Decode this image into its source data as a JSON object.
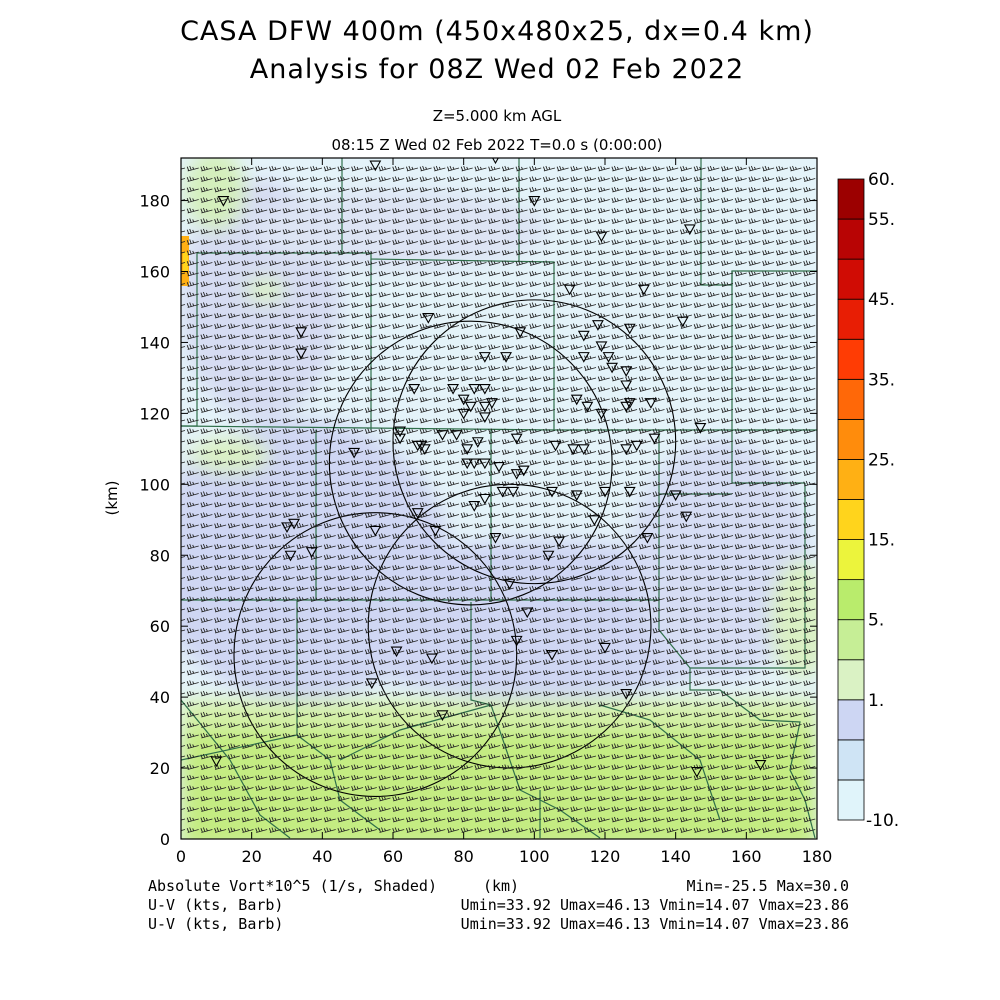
{
  "header": {
    "title_line1": "CASA DFW 400m (450x480x25, dx=0.4 km)",
    "title_line2": "Analysis for 08Z Wed 02 Feb 2022",
    "level": "Z=5.000 km AGL",
    "time_line": "08:15 Z Wed 02 Feb 2022    T=0.0 s (0:00:00)"
  },
  "footer": {
    "field_label": "Absolute Vort*10^5 (1/s, Shaded)",
    "xunit": "(km)",
    "minmax": "Min=-25.5 Max=30.0",
    "barb1_label": "U-V (kts, Barb)",
    "barb1_stats": "Umin=33.92 Umax=46.13 Vmin=14.07 Vmax=23.86",
    "barb2_label": "U-V (kts, Barb)",
    "barb2_stats": "Umin=33.92 Umax=46.13 Vmin=14.07 Vmax=23.86"
  },
  "chart_data": {
    "type": "heatmap",
    "title": "CASA DFW 400m (450x480x25, dx=0.4 km)",
    "xlabel": "(km)",
    "ylabel": "(km)",
    "xlim": [
      0,
      180
    ],
    "ylim": [
      0,
      192
    ],
    "x_ticks": [
      "0",
      "20",
      "40",
      "60",
      "80",
      "100",
      "120",
      "140",
      "160",
      "180"
    ],
    "y_ticks": [
      "0",
      "20",
      "40",
      "60",
      "80",
      "100",
      "120",
      "140",
      "160",
      "180"
    ],
    "field": "Absolute Vort*10^5 (1/s, Shaded)",
    "field_min": -25.5,
    "field_max": 30.0,
    "colorbar": {
      "labels": [
        "60.",
        "55.",
        "45.",
        "35.",
        "25.",
        "15.",
        "5.",
        "1.",
        "-10."
      ],
      "colors": [
        "#e0f4fa",
        "#cfe4f5",
        "#cdd6f3",
        "#daf2c4",
        "#c6ee96",
        "#b9ec6c",
        "#ecf43c",
        "#ffd41c",
        "#ffb014",
        "#ff8c0c",
        "#ff6808",
        "#ff3c04",
        "#e81e04",
        "#d00c04",
        "#b80404",
        "#9c0000"
      ]
    },
    "regions": [
      {
        "name": "light-cyan",
        "color": "#e6f4fa"
      },
      {
        "name": "lavender",
        "color": "#cfd6f3"
      },
      {
        "name": "light-green",
        "color": "#daf2c4"
      },
      {
        "name": "yellow-green",
        "color": "#c4ec82"
      },
      {
        "name": "orange-spot",
        "color": "#ffb014"
      }
    ],
    "radar_circles": [
      {
        "cx": 100,
        "cy": 112,
        "r": 40
      },
      {
        "cx": 82,
        "cy": 106,
        "r": 40
      },
      {
        "cx": 93,
        "cy": 60,
        "r": 40
      },
      {
        "cx": 55,
        "cy": 52,
        "r": 40
      }
    ],
    "barbs": {
      "u_min": 33.92,
      "u_max": 46.13,
      "v_min": 14.07,
      "v_max": 23.86,
      "units": "kts"
    },
    "stations": [
      [
        55,
        190
      ],
      [
        89,
        192
      ],
      [
        12,
        180
      ],
      [
        100,
        180
      ],
      [
        119,
        170
      ],
      [
        144,
        172
      ],
      [
        131,
        155
      ],
      [
        110,
        155
      ],
      [
        70,
        147
      ],
      [
        96,
        143
      ],
      [
        118,
        145
      ],
      [
        127,
        144
      ],
      [
        142,
        146
      ],
      [
        34,
        143
      ],
      [
        34,
        137
      ],
      [
        86,
        136
      ],
      [
        92,
        136
      ],
      [
        114,
        142
      ],
      [
        114,
        136
      ],
      [
        119,
        139
      ],
      [
        121,
        136
      ],
      [
        122,
        133
      ],
      [
        126,
        132
      ],
      [
        126,
        128
      ],
      [
        66,
        127
      ],
      [
        77,
        127
      ],
      [
        83,
        127
      ],
      [
        86,
        127
      ],
      [
        88,
        123
      ],
      [
        80,
        124
      ],
      [
        82,
        122
      ],
      [
        80,
        120
      ],
      [
        86,
        122
      ],
      [
        86,
        119
      ],
      [
        112,
        124
      ],
      [
        115,
        122
      ],
      [
        119,
        120
      ],
      [
        126,
        122
      ],
      [
        127,
        123
      ],
      [
        133,
        123
      ],
      [
        62,
        115
      ],
      [
        74,
        114
      ],
      [
        78,
        114
      ],
      [
        84,
        112
      ],
      [
        95,
        113
      ],
      [
        106,
        111
      ],
      [
        111,
        110
      ],
      [
        114,
        110
      ],
      [
        126,
        110
      ],
      [
        129,
        111
      ],
      [
        134,
        113
      ],
      [
        147,
        116
      ],
      [
        49,
        109
      ],
      [
        62,
        113
      ],
      [
        67,
        111
      ],
      [
        68,
        111
      ],
      [
        69,
        110
      ],
      [
        81,
        110
      ],
      [
        81,
        106
      ],
      [
        83,
        106
      ],
      [
        86,
        106
      ],
      [
        90,
        105
      ],
      [
        97,
        104
      ],
      [
        95,
        103
      ],
      [
        97,
        104
      ],
      [
        94,
        98
      ],
      [
        91,
        98
      ],
      [
        86,
        96
      ],
      [
        83,
        94
      ],
      [
        105,
        98
      ],
      [
        112,
        97
      ],
      [
        120,
        98
      ],
      [
        127,
        98
      ],
      [
        140,
        97
      ],
      [
        143,
        91
      ],
      [
        67,
        92
      ],
      [
        32,
        89
      ],
      [
        30,
        88
      ],
      [
        55,
        87
      ],
      [
        72,
        87
      ],
      [
        89,
        85
      ],
      [
        107,
        84
      ],
      [
        117,
        90
      ],
      [
        132,
        85
      ],
      [
        104,
        80
      ],
      [
        37,
        81
      ],
      [
        31,
        80
      ],
      [
        93,
        72
      ],
      [
        98,
        64
      ],
      [
        95,
        56
      ],
      [
        61,
        53
      ],
      [
        71,
        51
      ],
      [
        105,
        52
      ],
      [
        120,
        54
      ],
      [
        54,
        44
      ],
      [
        74,
        35
      ],
      [
        126,
        41
      ],
      [
        10,
        22
      ],
      [
        164,
        21
      ],
      [
        146,
        19
      ]
    ],
    "grid": false,
    "legend": "right"
  }
}
